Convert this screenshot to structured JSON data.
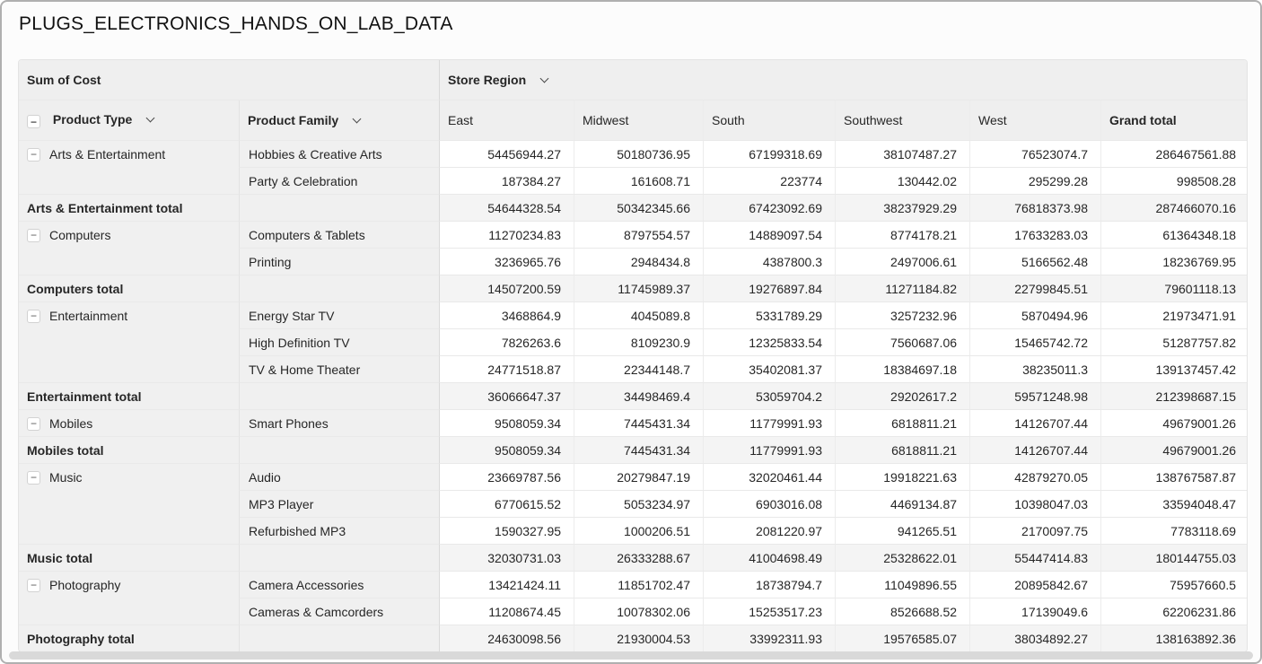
{
  "title": "PLUGS_ELECTRONICS_HANDS_ON_LAB_DATA",
  "icons": {
    "collapse_minus": "−",
    "chevron_down": "chevron-down"
  },
  "colors": {
    "header_bg": "#efefef",
    "frozen_bg": "#f0f0f0",
    "total_value_bg": "#f4f4f4",
    "cell_bg": "#ffffff",
    "grid_border": "#e9e9e9",
    "frozen_divider": "#d9d9d9",
    "outer_border": "#b0b0b0",
    "scrollbar": "#d9d9d9",
    "text": "#262626"
  },
  "pivot": {
    "measure_label": "Sum of Cost",
    "column_dimension": "Store Region",
    "row_dimensions": [
      "Product Type",
      "Product Family"
    ],
    "columns": [
      "East",
      "Midwest",
      "South",
      "Southwest",
      "West",
      "Grand total"
    ],
    "groups": [
      {
        "label": "Arts & Entertainment",
        "rows": [
          {
            "family": "Hobbies & Creative Arts",
            "values": [
              "54456944.27",
              "50180736.95",
              "67199318.69",
              "38107487.27",
              "76523074.7",
              "286467561.88"
            ]
          },
          {
            "family": "Party & Celebration",
            "values": [
              "187384.27",
              "161608.71",
              "223774",
              "130442.02",
              "295299.28",
              "998508.28"
            ]
          }
        ],
        "total": {
          "label": "Arts & Entertainment total",
          "values": [
            "54644328.54",
            "50342345.66",
            "67423092.69",
            "38237929.29",
            "76818373.98",
            "287466070.16"
          ]
        }
      },
      {
        "label": "Computers",
        "rows": [
          {
            "family": "Computers & Tablets",
            "values": [
              "11270234.83",
              "8797554.57",
              "14889097.54",
              "8774178.21",
              "17633283.03",
              "61364348.18"
            ]
          },
          {
            "family": "Printing",
            "values": [
              "3236965.76",
              "2948434.8",
              "4387800.3",
              "2497006.61",
              "5166562.48",
              "18236769.95"
            ]
          }
        ],
        "total": {
          "label": "Computers total",
          "values": [
            "14507200.59",
            "11745989.37",
            "19276897.84",
            "11271184.82",
            "22799845.51",
            "79601118.13"
          ]
        }
      },
      {
        "label": "Entertainment",
        "rows": [
          {
            "family": "Energy Star TV",
            "values": [
              "3468864.9",
              "4045089.8",
              "5331789.29",
              "3257232.96",
              "5870494.96",
              "21973471.91"
            ]
          },
          {
            "family": "High Definition TV",
            "values": [
              "7826263.6",
              "8109230.9",
              "12325833.54",
              "7560687.06",
              "15465742.72",
              "51287757.82"
            ]
          },
          {
            "family": "TV & Home Theater",
            "values": [
              "24771518.87",
              "22344148.7",
              "35402081.37",
              "18384697.18",
              "38235011.3",
              "139137457.42"
            ]
          }
        ],
        "total": {
          "label": "Entertainment total",
          "values": [
            "36066647.37",
            "34498469.4",
            "53059704.2",
            "29202617.2",
            "59571248.98",
            "212398687.15"
          ]
        }
      },
      {
        "label": "Mobiles",
        "rows": [
          {
            "family": "Smart Phones",
            "values": [
              "9508059.34",
              "7445431.34",
              "11779991.93",
              "6818811.21",
              "14126707.44",
              "49679001.26"
            ]
          }
        ],
        "total": {
          "label": "Mobiles total",
          "values": [
            "9508059.34",
            "7445431.34",
            "11779991.93",
            "6818811.21",
            "14126707.44",
            "49679001.26"
          ]
        }
      },
      {
        "label": "Music",
        "rows": [
          {
            "family": "Audio",
            "values": [
              "23669787.56",
              "20279847.19",
              "32020461.44",
              "19918221.63",
              "42879270.05",
              "138767587.87"
            ]
          },
          {
            "family": "MP3 Player",
            "values": [
              "6770615.52",
              "5053234.97",
              "6903016.08",
              "4469134.87",
              "10398047.03",
              "33594048.47"
            ]
          },
          {
            "family": "Refurbished MP3",
            "values": [
              "1590327.95",
              "1000206.51",
              "2081220.97",
              "941265.51",
              "2170097.75",
              "7783118.69"
            ]
          }
        ],
        "total": {
          "label": "Music total",
          "values": [
            "32030731.03",
            "26333288.67",
            "41004698.49",
            "25328622.01",
            "55447414.83",
            "180144755.03"
          ]
        }
      },
      {
        "label": "Photography",
        "rows": [
          {
            "family": "Camera Accessories",
            "values": [
              "13421424.11",
              "11851702.47",
              "18738794.7",
              "11049896.55",
              "20895842.67",
              "75957660.5"
            ]
          },
          {
            "family": "Cameras & Camcorders",
            "values": [
              "11208674.45",
              "10078302.06",
              "15253517.23",
              "8526688.52",
              "17139049.6",
              "62206231.86"
            ]
          }
        ],
        "total": {
          "label": "Photography total",
          "values": [
            "24630098.56",
            "21930004.53",
            "33992311.93",
            "19576585.07",
            "38034892.27",
            "138163892.36"
          ]
        }
      }
    ]
  }
}
